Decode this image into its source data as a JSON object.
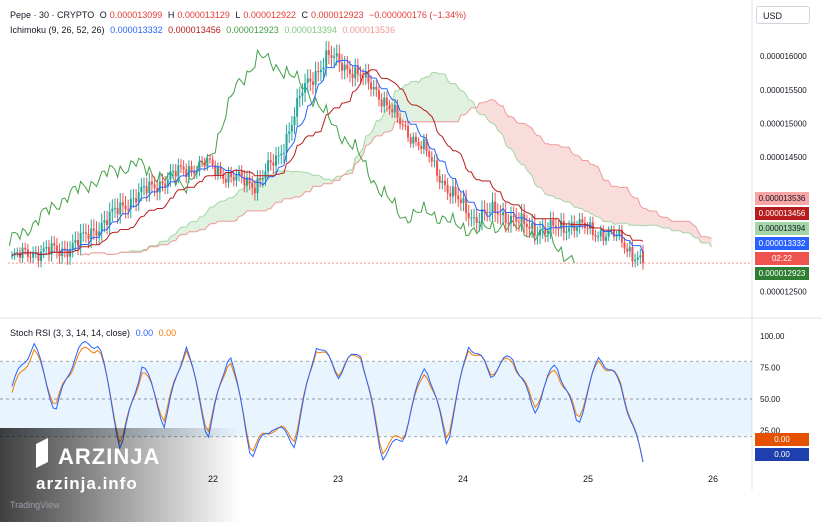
{
  "header": {
    "symbol": "Pepe · 30 · CRYPTO",
    "o_label": "O",
    "o_value": "0.000013099",
    "h_label": "H",
    "h_value": "0.000013129",
    "l_label": "L",
    "l_value": "0.000012922",
    "c_label": "C",
    "c_value": "0.000012923",
    "change": "−0.000000176 (−1.34%)",
    "ichimoku_label": "Ichimoku (9, 26, 52, 26)",
    "ichimoku_values": [
      "0.000013332",
      "0.000013456",
      "0.000012923",
      "0.000013394",
      "0.000013536"
    ],
    "stoch_label": "Stoch RSI (3, 3, 14, 14, close)",
    "stoch_values": [
      "0.00",
      "0.00"
    ]
  },
  "currency": "USD",
  "price_axis": [
    "0.000016000",
    "0.000015500",
    "0.000015000",
    "0.000014500",
    "0.000012500"
  ],
  "stoch_axis": [
    "100.00",
    "75.00",
    "50.00",
    "25.00"
  ],
  "badges": [
    {
      "text": "0.000013536",
      "color": "#f7a5a5",
      "fg": "#131722"
    },
    {
      "text": "0.000013456",
      "color": "#b71c1c",
      "fg": "#ffffff"
    },
    {
      "text": "0.000013394",
      "color": "#a5d6a7",
      "fg": "#131722"
    },
    {
      "text": "0.000013332",
      "color": "#2962ff",
      "fg": "#ffffff"
    },
    {
      "text": "02:22",
      "color": "#ef5350",
      "fg": "#ffffff"
    },
    {
      "text": "0.000012923",
      "color": "#2e7d32",
      "fg": "#ffffff"
    },
    {
      "text": "0.00",
      "color": "#e65100",
      "fg": "#ffffff"
    },
    {
      "text": "0.00",
      "color": "#1e3fae",
      "fg": "#ffffff"
    }
  ],
  "x_axis": [
    "22",
    "23",
    "24",
    "25",
    "26"
  ],
  "watermark": {
    "brand": "ARZINJA",
    "url": "arzinja.info",
    "platform": "TradingView"
  },
  "colors": {
    "up": "#26a69a",
    "down": "#ef5350",
    "tenkan": "#2962ff",
    "kijun": "#b71c1c",
    "chikou": "#43a047",
    "span_a": "#a5d6a7",
    "span_b": "#ef9a9a",
    "stoch_k": "#2962ff",
    "stoch_d": "#f57c00"
  },
  "chart_data": [
    {
      "type": "candlestick",
      "title": "Pepe · 30 · CRYPTO",
      "ylabel": "USD",
      "ylim": [
        1.23e-05,
        1.63e-05
      ],
      "x": [
        "22",
        "23",
        "24",
        "25",
        "26"
      ],
      "close_approx": [
        1.3e-05,
        1.31e-05,
        1.31e-05,
        1.33e-05,
        1.36e-05,
        1.39e-05,
        1.41e-05,
        1.43e-05,
        1.44e-05,
        1.42e-05,
        1.41e-05,
        1.45e-05,
        1.55e-05,
        1.6e-05,
        1.58e-05,
        1.55e-05,
        1.5e-05,
        1.46e-05,
        1.4e-05,
        1.36e-05,
        1.37e-05,
        1.35e-05,
        1.34e-05,
        1.35e-05,
        1.34e-05,
        1.33e-05,
        1.29e-05
      ],
      "last": {
        "open": 1.3099e-05,
        "high": 1.3129e-05,
        "low": 1.2922e-05,
        "close": 1.2923e-05
      },
      "ichimoku": {
        "conversion": 1.3332e-05,
        "base": 1.3456e-05,
        "lagging": 1.2923e-05,
        "lead_a": 1.3394e-05,
        "lead_b": 1.3536e-05
      }
    },
    {
      "type": "line",
      "title": "Stoch RSI (3, 3, 14, 14, close)",
      "ylim": [
        0,
        100
      ],
      "bands": [
        80,
        50,
        20
      ],
      "series": [
        {
          "values": [
            60,
            95,
            40,
            90,
            95,
            10,
            80,
            30,
            95,
            20,
            90,
            5,
            30,
            15,
            95,
            70,
            90,
            5,
            20,
            80,
            15,
            95,
            70,
            85,
            40,
            80,
            30,
            85,
            60,
            0
          ]
        },
        {
          "values": [
            55,
            90,
            45,
            85,
            92,
            15,
            75,
            35,
            92,
            25,
            85,
            10,
            28,
            20,
            92,
            72,
            88,
            10,
            22,
            75,
            20,
            92,
            72,
            82,
            45,
            75,
            35,
            82,
            62,
            0
          ]
        }
      ]
    }
  ]
}
